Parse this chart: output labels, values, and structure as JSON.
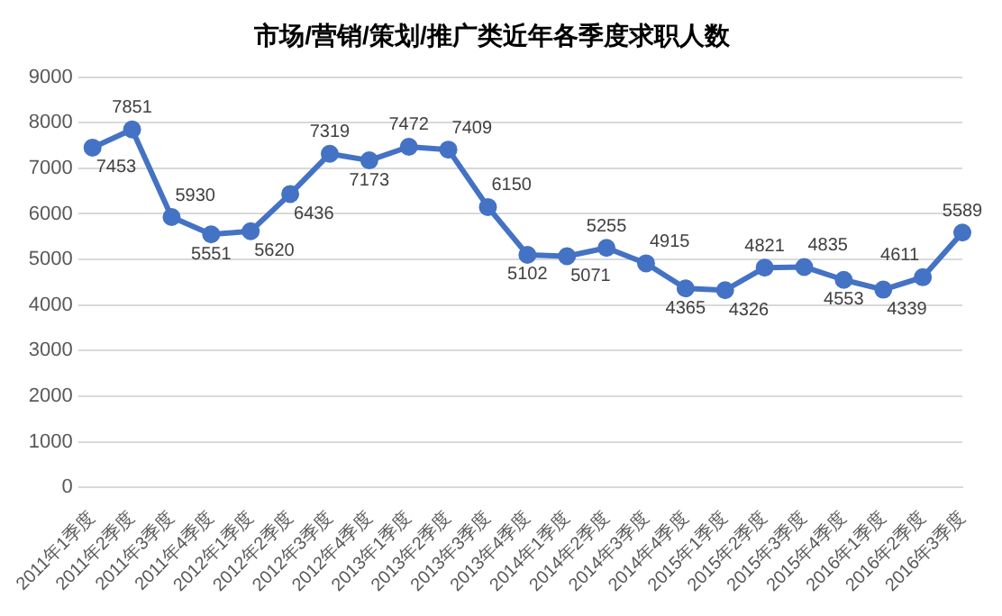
{
  "chart_data": {
    "type": "line",
    "title": "市场/营销/策划/推广类近年各季度求职人数",
    "categories": [
      "2011年1季度",
      "2011年2季度",
      "2011年3季度",
      "2011年4季度",
      "2012年1季度",
      "2012年2季度",
      "2012年3季度",
      "2012年4季度",
      "2013年1季度",
      "2013年2季度",
      "2013年3季度",
      "2013年4季度",
      "2014年1季度",
      "2014年2季度",
      "2014年3季度",
      "2014年4季度",
      "2015年1季度",
      "2015年2季度",
      "2015年3季度",
      "2015年4季度",
      "2016年1季度",
      "2016年2季度",
      "2016年3季度"
    ],
    "series": [
      {
        "color": "#4472c4",
        "values": [
          7453,
          7851,
          5930,
          5551,
          5620,
          6436,
          7319,
          7173,
          7472,
          7409,
          6150,
          5102,
          5071,
          5255,
          4915,
          4365,
          4326,
          4821,
          4835,
          4553,
          4339,
          4611,
          5589
        ]
      }
    ],
    "ylim": [
      0,
      9000
    ],
    "yticks": [
      0,
      1000,
      2000,
      3000,
      4000,
      5000,
      6000,
      7000,
      8000,
      9000
    ],
    "grid": "y",
    "marker": "circle",
    "line_style": "solid",
    "data_labels": true,
    "legend": false
  }
}
